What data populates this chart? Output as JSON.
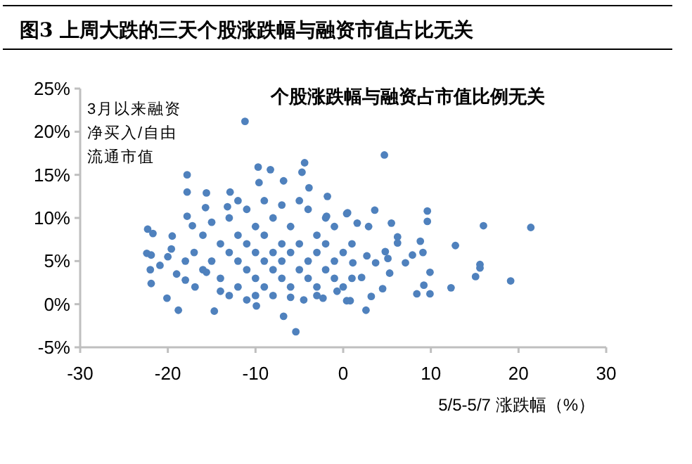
{
  "chart_data": {
    "type": "scatter",
    "title": "图3  上周大跌的三天个股涨跌幅与融资市值占比无关",
    "subtitle": "个股涨跌幅与融资占市值比例无关",
    "xlabel": "5/5-5/7 涨跌幅（%）",
    "ylabel": "3月以来融资净买入/自由流通市值",
    "color": "#4f81bd",
    "marker": "circle",
    "grid": false,
    "x": [
      -11.2,
      -17.8,
      -17.8,
      -9.7,
      -8.3,
      -4.4,
      -4.7,
      -6.8,
      -3.9,
      -9.6,
      -22.3,
      -21.7,
      -21.9,
      -22.4,
      -22.0,
      -21.9,
      -20.1,
      -18.8,
      -14.7,
      -5.4,
      -6.8,
      -9.9,
      -20.9,
      -19.6,
      -19.5,
      -17.8,
      -17.2,
      -15.6,
      -15.7,
      -18.0,
      -16.9,
      -15.6,
      -14.0,
      -12.9,
      -13.2,
      -1.8,
      -1.9,
      0.4,
      -0.7,
      -2.3,
      0.4,
      4.7,
      3.6,
      0.5,
      9.6,
      9.6,
      5.5,
      16.0,
      21.4,
      1.6,
      2.9,
      6.2,
      6.2,
      8.8,
      12.8,
      7.9,
      9.1,
      7.1,
      9.9,
      15.6,
      15.6,
      15.1,
      19.1,
      12.3,
      8.4,
      9.9,
      9.2,
      2.6,
      4.8,
      5.1,
      5.3,
      4.5,
      3.2,
      0.8,
      2.1,
      2.7,
      1.1,
      3.7,
      -14,
      -13,
      -12,
      -12,
      -11,
      -11,
      -10,
      -10,
      -10,
      -9,
      -9,
      -9,
      -8,
      -8,
      -8,
      -7,
      -7,
      -7,
      -6,
      -6,
      -6,
      -5,
      -5,
      -4,
      -4,
      -4,
      -3,
      -3,
      -3,
      -2,
      -2,
      -1,
      -1,
      -1,
      0,
      0,
      1,
      1,
      -15,
      -16,
      -16,
      -17,
      -13,
      -11,
      -12,
      -14,
      -9,
      -7,
      -5,
      -6,
      -8,
      -10,
      -13,
      -3,
      -2,
      -18,
      -19,
      -20,
      -15,
      -12,
      -4.5,
      -11
    ],
    "values": [
      21.2,
      15.0,
      13.0,
      15.9,
      15.6,
      16.4,
      15.3,
      14.3,
      13.5,
      14.1,
      8.7,
      8.2,
      5.7,
      5.9,
      4.0,
      2.4,
      0.7,
      -0.7,
      -0.8,
      -3.2,
      -1.4,
      -0.2,
      4.5,
      6.4,
      7.9,
      10.2,
      9.1,
      12.9,
      11.2,
      2.8,
      2.0,
      3.7,
      1.5,
      13.0,
      11.3,
      12.5,
      10.2,
      10.5,
      1.5,
      0.7,
      0.4,
      17.3,
      10.9,
      10.6,
      10.8,
      9.6,
      9.4,
      9.1,
      8.9,
      9.4,
      9.0,
      7.8,
      7.1,
      7.3,
      6.8,
      5.7,
      6.0,
      4.8,
      3.7,
      4.6,
      4.2,
      3.2,
      2.7,
      1.9,
      1.2,
      1.2,
      2.2,
      -0.7,
      6.1,
      5.3,
      3.6,
      1.8,
      0.9,
      0.4,
      3.1,
      5.6,
      4.8,
      4.8,
      7,
      6,
      5,
      8,
      4,
      7,
      3,
      6,
      9,
      5,
      2,
      8,
      4,
      6,
      10,
      3,
      7,
      5,
      2,
      6,
      9,
      4,
      7,
      3,
      5,
      11,
      2,
      6,
      8,
      4,
      7,
      3,
      5,
      9,
      2,
      6,
      3,
      7,
      5,
      4,
      8,
      6,
      10,
      11,
      2,
      3,
      12,
      11.5,
      12,
      0.8,
      1,
      1,
      1,
      1,
      10,
      5,
      3.5,
      5.5,
      9.5,
      12,
      0.5,
      0.5
    ],
    "xlim": [
      -30,
      30
    ],
    "xticks": [
      -30,
      -20,
      -10,
      0,
      10,
      20,
      30
    ],
    "ylim": [
      -5,
      25
    ],
    "yticks": [
      {
        "value": -5,
        "label": "-5%"
      },
      {
        "value": 0,
        "label": "0%"
      },
      {
        "value": 5,
        "label": "5%"
      },
      {
        "value": 10,
        "label": "10%"
      },
      {
        "value": 15,
        "label": "15%"
      },
      {
        "value": 20,
        "label": "20%"
      },
      {
        "value": 25,
        "label": "25%"
      }
    ]
  }
}
